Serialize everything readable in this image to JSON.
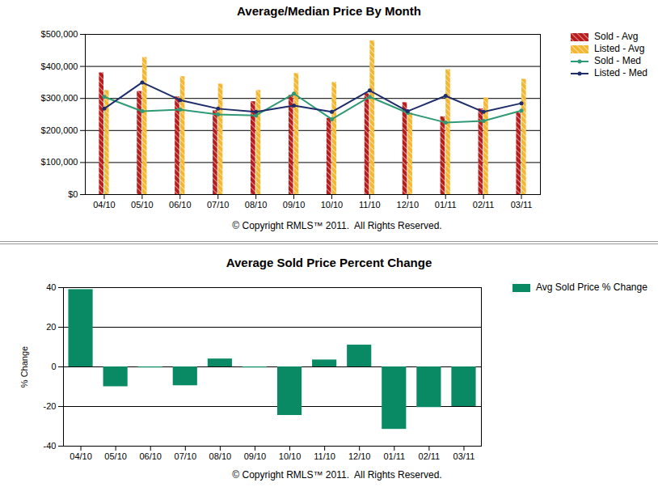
{
  "chart_data": [
    {
      "type": "bar",
      "title": "Average/Median Price By Month",
      "annotations": [
        "© Copyright RMLS™ 2011.  All Rights Reserved."
      ],
      "categories": [
        "04/10",
        "05/10",
        "06/10",
        "07/10",
        "08/10",
        "09/10",
        "10/10",
        "11/10",
        "12/10",
        "01/11",
        "02/11",
        "03/11"
      ],
      "series": [
        {
          "name": "Sold - Avg",
          "type": "bar",
          "color": "#b81d1d",
          "values": [
            380000,
            322000,
            305000,
            262000,
            290000,
            310000,
            238000,
            315000,
            287000,
            243000,
            268000,
            255000
          ]
        },
        {
          "name": "Listed - Avg",
          "type": "bar",
          "color": "#f4b731",
          "values": [
            325000,
            428000,
            368000,
            345000,
            325000,
            378000,
            350000,
            480000,
            255000,
            390000,
            302000,
            360000
          ]
        },
        {
          "name": "Sold - Med",
          "type": "line",
          "color": "#2f9a74",
          "marker": "circle",
          "values": [
            305000,
            260000,
            265000,
            250000,
            247000,
            315000,
            235000,
            305000,
            255000,
            225000,
            230000,
            262000
          ]
        },
        {
          "name": "Listed - Med",
          "type": "line",
          "color": "#1f2d6b",
          "marker": "circle",
          "values": [
            268000,
            350000,
            295000,
            268000,
            258000,
            278000,
            258000,
            325000,
            260000,
            308000,
            258000,
            285000
          ]
        }
      ],
      "ylim": [
        0,
        500000
      ],
      "yticks": [
        {
          "value": 0,
          "label": "$0"
        },
        {
          "value": 100000,
          "label": "$100,000"
        },
        {
          "value": 200000,
          "label": "$200,000"
        },
        {
          "value": 300000,
          "label": "$300,000"
        },
        {
          "value": 400000,
          "label": "$400,000"
        },
        {
          "value": 500000,
          "label": "$500,000"
        }
      ],
      "grid": true,
      "legend": "right"
    },
    {
      "type": "bar",
      "title": "Average Sold Price Percent Change",
      "y_label": "% Change",
      "annotations": [
        "© Copyright RMLS™ 2011.  All Rights Reserved."
      ],
      "categories": [
        "04/10",
        "05/10",
        "06/10",
        "07/10",
        "08/10",
        "09/10",
        "10/10",
        "11/10",
        "12/10",
        "01/11",
        "02/11",
        "03/11"
      ],
      "series": [
        {
          "name": "Avg Sold Price % Change",
          "color": "#0a8a64",
          "values": [
            39,
            -10,
            -0.5,
            -9.5,
            4,
            -0.5,
            -24.5,
            3.5,
            11,
            -31.5,
            -20.5,
            -20
          ]
        }
      ],
      "ylim": [
        -40,
        40
      ],
      "yticks": [
        -40,
        -20,
        0,
        20,
        40
      ],
      "grid": true,
      "legend": "right"
    }
  ]
}
